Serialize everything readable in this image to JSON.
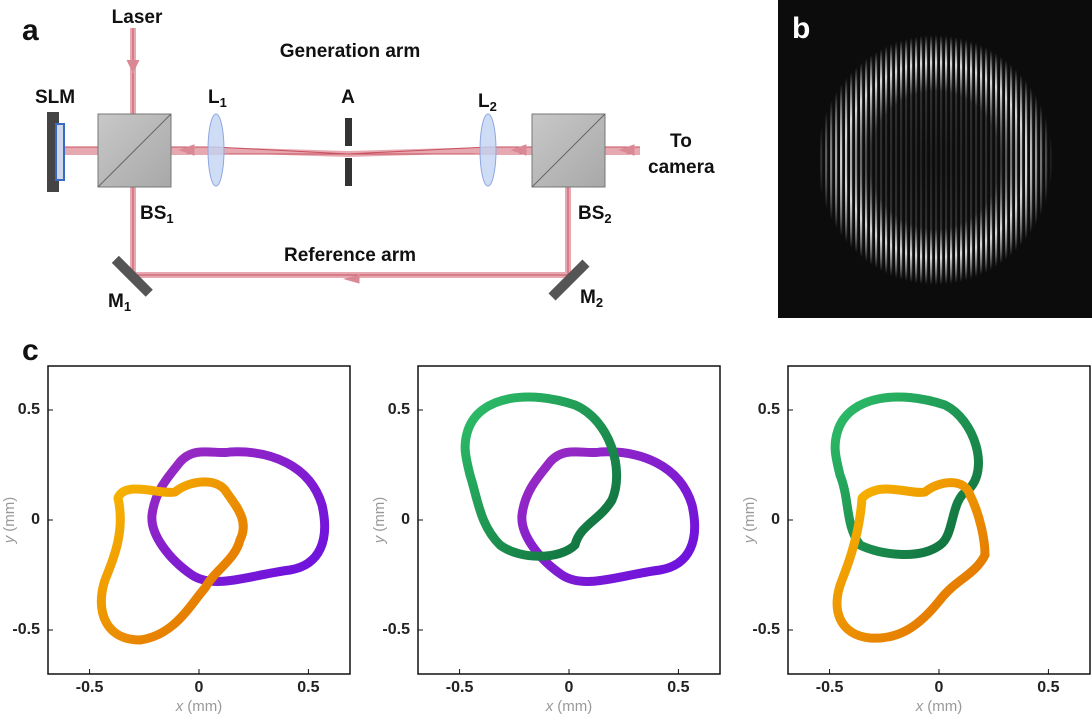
{
  "panels": {
    "a": {
      "label": "a",
      "laser": "Laser",
      "generation_arm": "Generation arm",
      "reference_arm": "Reference arm",
      "slm": "SLM",
      "aperture": "A",
      "to_camera": [
        "To",
        "camera"
      ],
      "lenses": [
        {
          "text": "L",
          "sub": "1"
        },
        {
          "text": "L",
          "sub": "2"
        }
      ],
      "splitters": [
        {
          "text": "BS",
          "sub": "1"
        },
        {
          "text": "BS",
          "sub": "2"
        }
      ],
      "mirrors": [
        {
          "text": "M",
          "sub": "1"
        },
        {
          "text": "M",
          "sub": "2"
        }
      ]
    },
    "b": {
      "label": "b"
    },
    "c": {
      "label": "c",
      "plots": [
        {
          "xlim": [
            -0.69,
            0.69
          ],
          "ylim": [
            -0.7,
            0.7
          ],
          "xticks": [
            -0.5,
            0,
            0.5
          ],
          "yticks": [
            -0.5,
            0,
            0.5
          ],
          "xlabel": {
            "var": "x",
            "unit": "(mm)"
          },
          "ylabel": {
            "var": "y",
            "unit": "(mm)"
          }
        },
        {
          "xlim": [
            -0.69,
            0.69
          ],
          "ylim": [
            -0.7,
            0.7
          ],
          "xticks": [
            -0.5,
            0,
            0.5
          ],
          "yticks": [
            -0.5,
            0,
            0.5
          ],
          "xlabel": {
            "var": "x",
            "unit": "(mm)"
          },
          "ylabel": {
            "var": "y",
            "unit": "(mm)"
          }
        },
        {
          "xlim": [
            -0.69,
            0.69
          ],
          "ylim": [
            -0.7,
            0.7
          ],
          "xticks": [
            -0.5,
            0,
            0.5
          ],
          "yticks": [
            -0.5,
            0,
            0.5
          ],
          "xlabel": {
            "var": "x",
            "unit": "(mm)"
          },
          "ylabel": {
            "var": "y",
            "unit": "(mm)"
          }
        }
      ]
    }
  }
}
